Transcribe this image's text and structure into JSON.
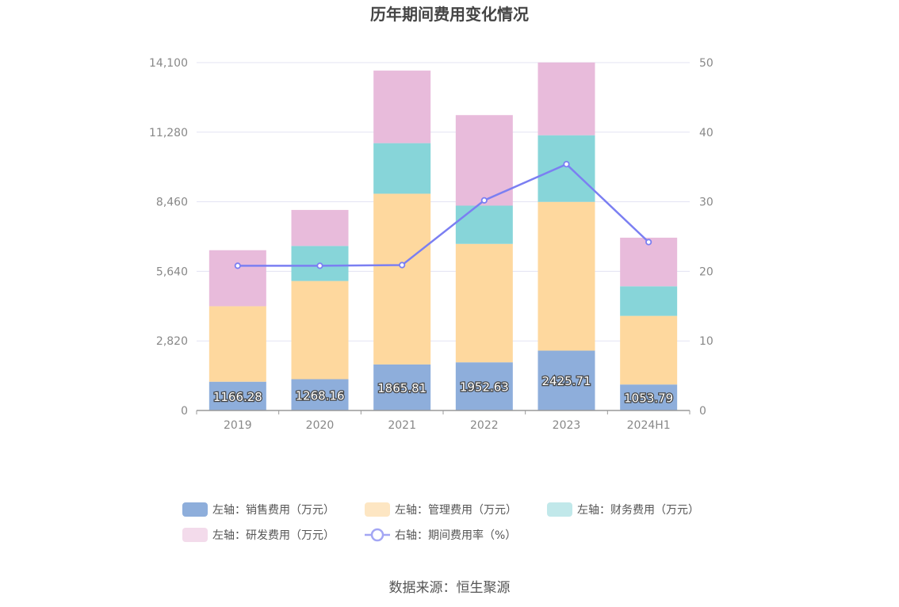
{
  "chart_data": {
    "type": "bar",
    "title": "历年期间费用变化情况",
    "categories": [
      "2019",
      "2020",
      "2021",
      "2022",
      "2023",
      "2024H1"
    ],
    "series": [
      {
        "name": "左轴：销售费用（万元）",
        "type": "stacked-bar",
        "axis": "left",
        "color": "#8eaedb",
        "values": [
          1166.28,
          1268.16,
          1865.81,
          1952.63,
          2425.71,
          1053.79
        ],
        "labels": [
          "1166.28",
          "1268.16",
          "1865.81",
          "1952.63",
          "2425.71",
          "1053.79"
        ]
      },
      {
        "name": "左轴：管理费用（万元）",
        "type": "stacked-bar",
        "axis": "left",
        "color": "#fed89e",
        "values": [
          3060,
          3980,
          6920,
          4800,
          6030,
          2780
        ]
      },
      {
        "name": "左轴：财务费用（万元）",
        "type": "stacked-bar",
        "axis": "left",
        "color": "#87d5d9",
        "values": [
          0,
          1420,
          2050,
          1550,
          2700,
          1200
        ]
      },
      {
        "name": "左轴：研发费用（万元）",
        "type": "stacked-bar",
        "axis": "left",
        "color": "#e8bbdb",
        "values": [
          2270,
          1460,
          2940,
          3670,
          2950,
          1970
        ]
      },
      {
        "name": "右轴：期间费用率（%）",
        "type": "line",
        "axis": "right",
        "color": "#7b7ff2",
        "values": [
          20.8,
          20.8,
          20.9,
          30.2,
          35.4,
          24.2
        ]
      }
    ],
    "y_left": {
      "min": 0,
      "max": 14100,
      "ticks": [
        "0",
        "2,820",
        "5,640",
        "8,460",
        "11,280",
        "14,100"
      ],
      "tick_values": [
        0,
        2820,
        5640,
        8460,
        11280,
        14100
      ]
    },
    "y_right": {
      "min": 0,
      "max": 50,
      "ticks": [
        "0",
        "10",
        "20",
        "30",
        "40",
        "50"
      ],
      "tick_values": [
        0,
        10,
        20,
        30,
        40,
        50
      ]
    },
    "grid": true,
    "legend_position": "bottom"
  },
  "legend": [
    {
      "label": "左轴：销售费用（万元）",
      "color": "#8eaedb",
      "kind": "bar"
    },
    {
      "label": "左轴：管理费用（万元）",
      "color": "#fde6c3",
      "kind": "bar"
    },
    {
      "label": "左轴：财务费用（万元）",
      "color": "#c1e8ea",
      "kind": "bar"
    },
    {
      "label": "左轴：研发费用（万元）",
      "color": "#f3dbeb",
      "kind": "bar"
    },
    {
      "label": "右轴：期间费用率（%）",
      "color": "#a3a6f4",
      "kind": "line"
    }
  ],
  "source": "数据来源：恒生聚源"
}
